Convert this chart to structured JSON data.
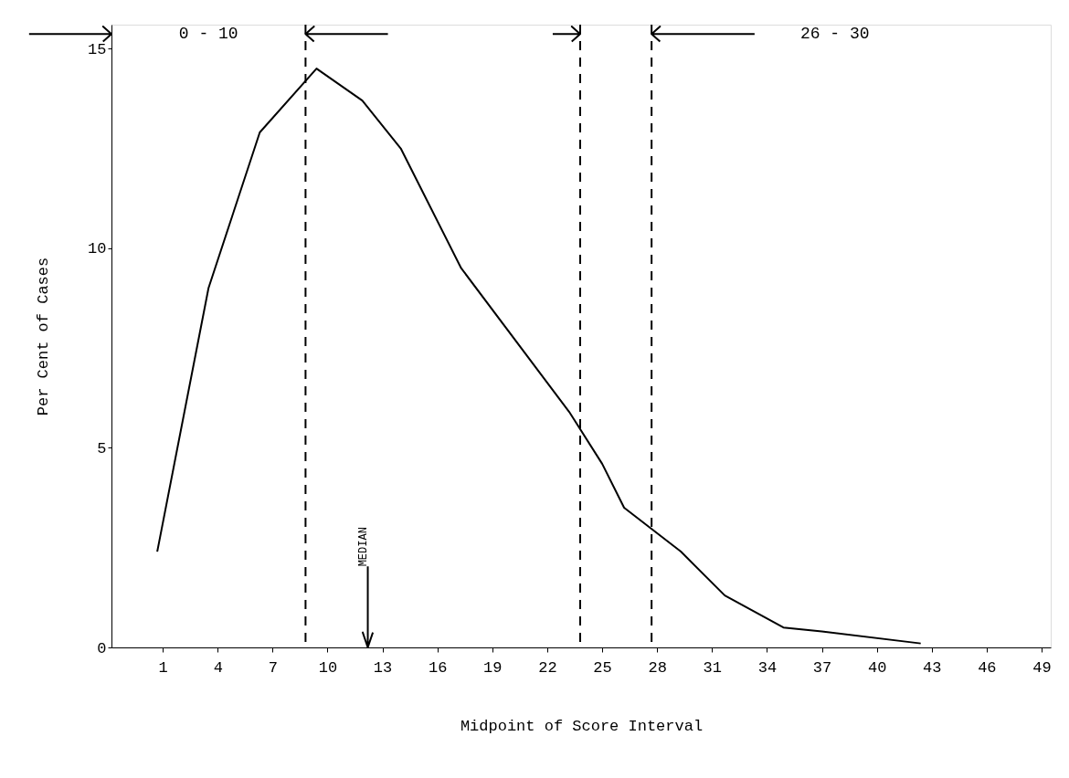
{
  "chart_data": {
    "type": "line",
    "xlabel": "Midpoint of Score Interval",
    "ylabel": "Per Cent of Cases",
    "series": [
      {
        "color": "#000000",
        "x": [
          0.7,
          3.5,
          6.3,
          9.4,
          11.9,
          14.0,
          17.3,
          23.2,
          25.0,
          26.2,
          29.3,
          31.7,
          34.9,
          37.0,
          42.4
        ],
        "values": [
          2.4,
          9.0,
          12.9,
          14.5,
          13.7,
          12.5,
          9.5,
          5.9,
          4.6,
          3.5,
          2.4,
          1.3,
          0.5,
          0.4,
          0.1
        ]
      }
    ],
    "xlim": [
      -1.8,
      49.5
    ],
    "ylim": [
      0,
      15.6
    ],
    "xticks": [
      1,
      4,
      7,
      10,
      13,
      16,
      19,
      22,
      25,
      28,
      31,
      34,
      37,
      40,
      43,
      46,
      49
    ],
    "yticks": [
      0,
      5,
      10,
      15
    ],
    "ref_lines": [
      {
        "axis": "x",
        "value": 8.8,
        "line_style": "dashed",
        "color": "#000000"
      },
      {
        "axis": "x",
        "value": 23.8,
        "line_style": "dashed",
        "color": "#000000"
      },
      {
        "axis": "x",
        "value": 27.7,
        "line_style": "dashed",
        "color": "#000000"
      },
      {
        "axis": "x",
        "value": 12.2,
        "label": "MEDIAN",
        "line_style": "solid",
        "color": "#000000"
      }
    ],
    "annotations": [
      "0 - 10",
      "26 - 30"
    ],
    "grid": false,
    "marker": "none",
    "line_style": "solid"
  }
}
